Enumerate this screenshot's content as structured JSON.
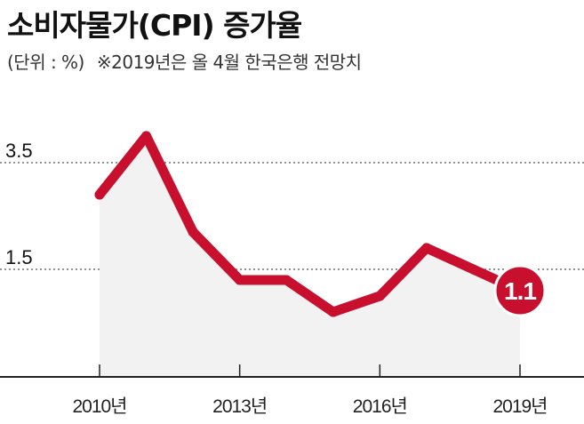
{
  "header": {
    "title": "소비자물가(CPI) 증가율",
    "unit": "(단위 : %)",
    "note": "※2019년은 올 4월 한국은행 전망치"
  },
  "colors": {
    "line": "#c8102e",
    "area": "#f2f2f2",
    "axis": "#222222",
    "grid": "#555555",
    "label_text": "#ffffff"
  },
  "chart_data": {
    "type": "area",
    "title": "소비자물가(CPI) 증가율",
    "unit": "%",
    "x": [
      2010,
      2011,
      2012,
      2013,
      2014,
      2015,
      2016,
      2017,
      2018,
      2019
    ],
    "values": [
      2.9,
      4.0,
      2.2,
      1.3,
      1.3,
      0.7,
      1.0,
      1.9,
      1.5,
      1.1
    ],
    "x_tick_labels": [
      "2010년",
      "2013년",
      "2016년",
      "2019년"
    ],
    "x_tick_values": [
      2010,
      2013,
      2016,
      2019
    ],
    "y_tick_labels": [
      "3.5",
      "1.5"
    ],
    "y_tick_values": [
      3.5,
      1.5
    ],
    "ylim": [
      0,
      4.8
    ],
    "grid": "horizontal-dotted",
    "annotation": {
      "x": 2019,
      "text": "1.1"
    }
  }
}
